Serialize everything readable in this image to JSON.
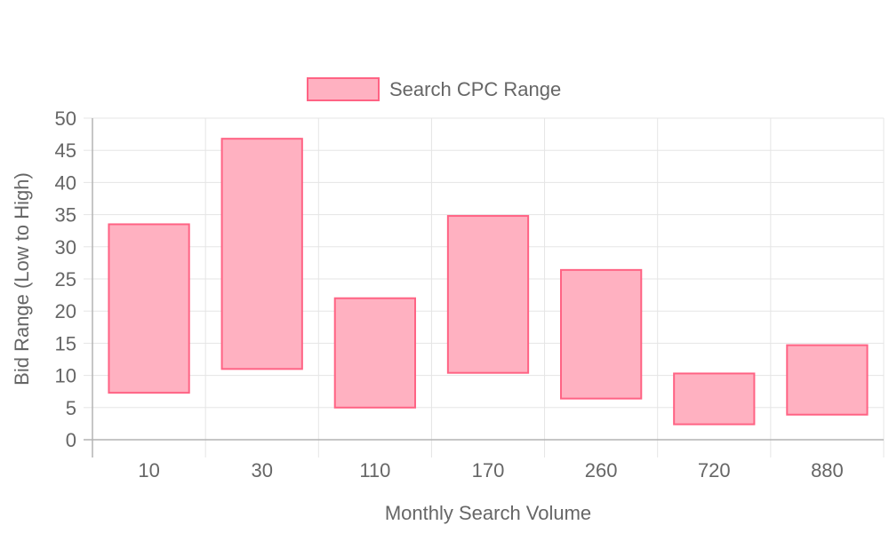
{
  "chart_data": {
    "type": "bar",
    "subtype": "floating-range",
    "categories": [
      "10",
      "30",
      "110",
      "170",
      "260",
      "720",
      "880"
    ],
    "series": [
      {
        "name": "Search CPC Range",
        "ranges": [
          [
            7.3,
            33.5
          ],
          [
            11.0,
            46.8
          ],
          [
            5.0,
            22.0
          ],
          [
            10.4,
            34.8
          ],
          [
            6.4,
            26.4
          ],
          [
            2.4,
            10.3
          ],
          [
            3.9,
            14.7
          ]
        ]
      }
    ],
    "title": "",
    "xlabel": "Monthly Search Volume",
    "ylabel": "Bid Range (Low to High)",
    "ylim": [
      0,
      50
    ],
    "yticks": [
      "0",
      "5",
      "10",
      "15",
      "20",
      "25",
      "30",
      "35",
      "40",
      "45",
      "50"
    ],
    "grid": true,
    "legend_position": "top-center",
    "colors": {
      "bar_fill": "#ffb1c1",
      "bar_stroke": "#ff6384",
      "grid": "#e5e5e5",
      "axis": "#b3b3b3",
      "text": "#666666"
    }
  }
}
